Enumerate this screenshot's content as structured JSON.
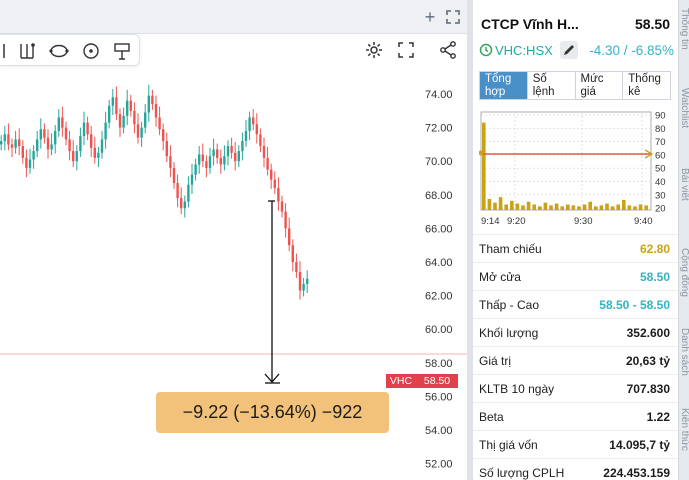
{
  "chart": {
    "symbol_tag": "VHC",
    "price_tag": "58.50",
    "price_axis": [
      "74.00",
      "72.00",
      "70.00",
      "68.00",
      "66.00",
      "64.00",
      "62.00",
      "60.00",
      "58.00",
      "56.00",
      "54.00",
      "52.00"
    ],
    "measure_label": "−9.22 (−13.64%) −922"
  },
  "panel": {
    "company": "CTCP Vĩnh H...",
    "price": "58.50",
    "ticker": "VHC:HSX",
    "change": "-4.30 / -6.85%",
    "tabs": [
      "Tổng\nhợp",
      "Số\nlệnh",
      "Mức\ngiá",
      "Thống\nkê"
    ],
    "mini_y_ticks": [
      "90",
      "80",
      "70",
      "60",
      "50",
      "40",
      "30",
      "20"
    ],
    "mini_x_ticks": [
      "9:14",
      "9:20",
      "9:30",
      "9:40"
    ],
    "stats": [
      {
        "label": "Tham chiếu",
        "value": "62.80",
        "color": "#c8a217"
      },
      {
        "label": "Mở cửa",
        "value": "58.50",
        "color": "#35b3c4"
      },
      {
        "label": "Thấp - Cao",
        "value": "58.50 - 58.50",
        "color": "#35b3c4"
      },
      {
        "label": "Khối lượng",
        "value": "352.600",
        "color": "#1d1d1d"
      },
      {
        "label": "Giá trị",
        "value": "20,63 tỷ",
        "color": "#1d1d1d"
      },
      {
        "label": "KLTB 10 ngày",
        "value": "707.830",
        "color": "#1d1d1d"
      },
      {
        "label": "Beta",
        "value": "1.22",
        "color": "#1d1d1d"
      },
      {
        "label": "Thị giá vốn",
        "value": "14.095,7 tỷ",
        "color": "#1d1d1d"
      },
      {
        "label": "Số lượng CPLH",
        "value": "224.453.159",
        "color": "#1d1d1d"
      }
    ]
  },
  "side_tabs": [
    "Thông tin",
    "Watchlist",
    "Bài viết",
    "Cộng đồng",
    "Danh sách",
    "Kiến thức"
  ],
  "colors": {
    "up": "#26a69a",
    "down": "#ef5350",
    "ref": "#c8a217",
    "accent": "#4a90c8"
  }
}
